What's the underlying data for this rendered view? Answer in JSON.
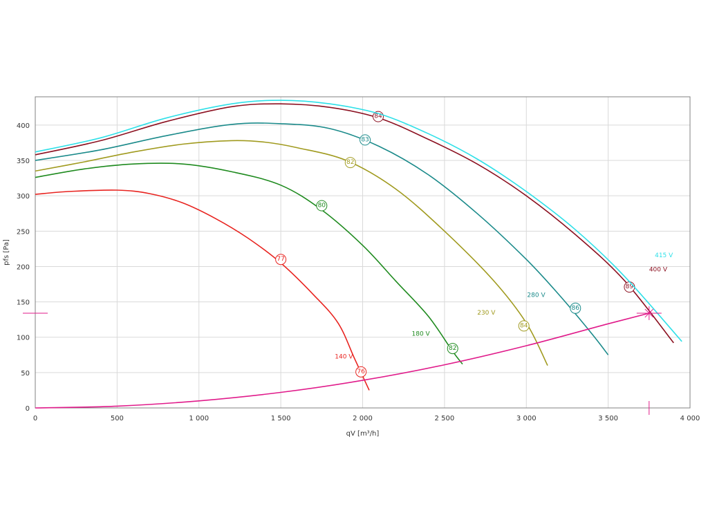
{
  "chart_data": {
    "type": "line",
    "title": "",
    "xlabel": "qV [m³/h]",
    "ylabel": "pfs [Pa]",
    "xlim": [
      0,
      4000
    ],
    "ylim": [
      0,
      440
    ],
    "grid": true,
    "legend": "none",
    "x_ticks": [
      0,
      500,
      1000,
      1500,
      2000,
      2500,
      3000,
      3500,
      4000
    ],
    "x_tick_labels": [
      "0",
      "500",
      "1 000",
      "1 500",
      "2 000",
      "2 500",
      "3 000",
      "3 500",
      "4 000"
    ],
    "y_ticks": [
      0,
      50,
      100,
      150,
      200,
      250,
      300,
      350,
      400
    ],
    "y_tick_labels": [
      "0",
      "50",
      "100",
      "150",
      "200",
      "250",
      "300",
      "350",
      "400"
    ],
    "series": [
      {
        "name": "140 V",
        "color": "#e8231f",
        "x": [
          0,
          200,
          500,
          700,
          900,
          1100,
          1300,
          1500,
          1700,
          1850,
          1950,
          2040
        ],
        "y": [
          302,
          306,
          308,
          303,
          290,
          268,
          240,
          205,
          160,
          120,
          70,
          25
        ],
        "label_at": [
          1830,
          70
        ],
        "markers": [
          {
            "x": 1500,
            "y": 210,
            "text": "77"
          },
          {
            "x": 1990,
            "y": 51,
            "text": "76"
          }
        ]
      },
      {
        "name": "180 V",
        "color": "#1e8a1e",
        "x": [
          0,
          300,
          600,
          900,
          1200,
          1500,
          1750,
          2000,
          2200,
          2400,
          2550,
          2610
        ],
        "y": [
          326,
          338,
          345,
          345,
          334,
          315,
          280,
          230,
          180,
          130,
          80,
          62
        ],
        "label_at": [
          2300,
          102
        ],
        "markers": [
          {
            "x": 1750,
            "y": 286,
            "text": "80"
          },
          {
            "x": 2550,
            "y": 84,
            "text": "82"
          }
        ]
      },
      {
        "name": "230 V",
        "color": "#a09a1e",
        "x": [
          0,
          300,
          600,
          900,
          1200,
          1400,
          1600,
          1900,
          2200,
          2500,
          2800,
          3000,
          3130
        ],
        "y": [
          335,
          348,
          362,
          373,
          378,
          376,
          368,
          350,
          310,
          250,
          180,
          120,
          60
        ],
        "label_at": [
          2700,
          132
        ],
        "markers": [
          {
            "x": 1925,
            "y": 347,
            "text": "82"
          },
          {
            "x": 2985,
            "y": 116,
            "text": "84"
          }
        ]
      },
      {
        "name": "280 V",
        "color": "#1a8a8a",
        "x": [
          0,
          400,
          800,
          1200,
          1500,
          1800,
          2100,
          2400,
          2700,
          3000,
          3200,
          3400,
          3500
        ],
        "y": [
          350,
          365,
          385,
          401,
          402,
          395,
          370,
          330,
          275,
          210,
          160,
          105,
          75
        ],
        "label_at": [
          3005,
          157
        ],
        "markers": [
          {
            "x": 2015,
            "y": 379,
            "text": "83"
          },
          {
            "x": 3300,
            "y": 141,
            "text": "86"
          }
        ]
      },
      {
        "name": "400 V",
        "color": "#8b1020",
        "x": [
          0,
          400,
          800,
          1200,
          1500,
          1800,
          2100,
          2400,
          2700,
          3000,
          3300,
          3600,
          3900
        ],
        "y": [
          358,
          378,
          405,
          426,
          430,
          425,
          410,
          380,
          345,
          300,
          245,
          180,
          92
        ],
        "label_at": [
          3750,
          193
        ],
        "markers": [
          {
            "x": 2095,
            "y": 412,
            "text": "84"
          },
          {
            "x": 3630,
            "y": 171,
            "text": "89"
          }
        ]
      },
      {
        "name": "415 V",
        "color": "#2ee0e8",
        "x": [
          0,
          400,
          800,
          1200,
          1500,
          1800,
          2100,
          2400,
          2700,
          3000,
          3300,
          3600,
          3950
        ],
        "y": [
          362,
          382,
          410,
          430,
          435,
          430,
          416,
          388,
          352,
          306,
          252,
          186,
          94
        ],
        "label_at": [
          3785,
          213
        ],
        "markers": []
      },
      {
        "name": "",
        "color": "#e01a8a",
        "x": [
          0,
          500,
          1000,
          1500,
          2000,
          2500,
          3000,
          3500,
          3750
        ],
        "y": [
          0,
          2.5,
          10,
          22,
          39,
          61,
          88,
          119,
          134
        ],
        "label_at": null,
        "markers": []
      }
    ],
    "operating_point": {
      "x": 3750,
      "y": 134,
      "color": "#e01a8a"
    }
  }
}
